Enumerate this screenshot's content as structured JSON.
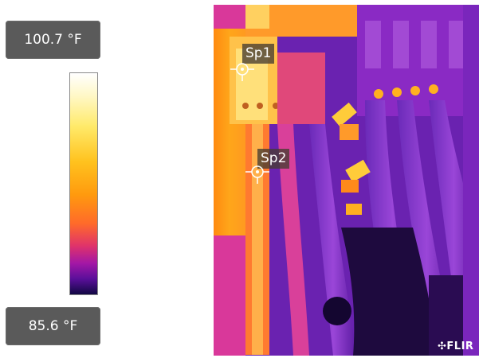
{
  "scale": {
    "max_temp": "100.7 °F",
    "min_temp": "85.6 °F",
    "palette": "iron"
  },
  "spots": [
    {
      "label": "Sp1"
    },
    {
      "label": "Sp2"
    }
  ],
  "brand": {
    "logo_text": "FLIR",
    "logo_icon": "flir-mark-icon"
  },
  "colors": {
    "panel_background": "#5a5a5a",
    "panel_text": "#ffffff",
    "hot": "#ffd25a",
    "cold": "#120844"
  }
}
